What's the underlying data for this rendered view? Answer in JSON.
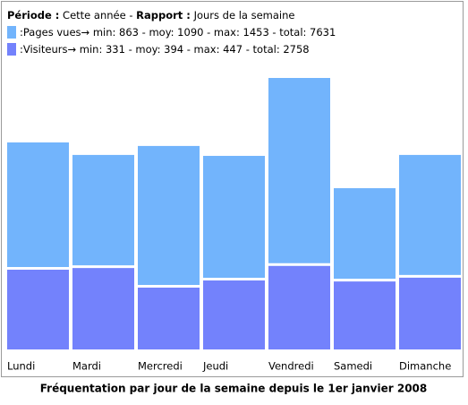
{
  "chart_data": {
    "type": "bar",
    "header": {
      "period_label": "Période :",
      "period": "Cette année",
      "sep": "-",
      "report_label": "Rapport :",
      "report": "Jours de la semaine"
    },
    "legend_separator": ":",
    "categories": [
      "Lundi",
      "Mardi",
      "Mercredi",
      "Jeudi",
      "Vendredi",
      "Samedi",
      "Dimanche"
    ],
    "series": [
      {
        "name": "Pages vues",
        "color": "#72b4fc",
        "summary": "→ min: 863 - moy: 1090 - max: 1453 - total: 7631",
        "values": [
          1108,
          1041,
          1089,
          1036,
          1453,
          863,
          1041
        ]
      },
      {
        "name": "Visiteurs",
        "color": "#7382fc",
        "summary": "→ min: 331 - moy: 394 - max: 447 - total: 2758",
        "values": [
          427,
          436,
          331,
          369,
          447,
          364,
          384
        ]
      }
    ],
    "ylim": [
      0,
      1453
    ],
    "caption": "Fréquentation par jour de la semaine depuis le 1er janvier 2008"
  }
}
